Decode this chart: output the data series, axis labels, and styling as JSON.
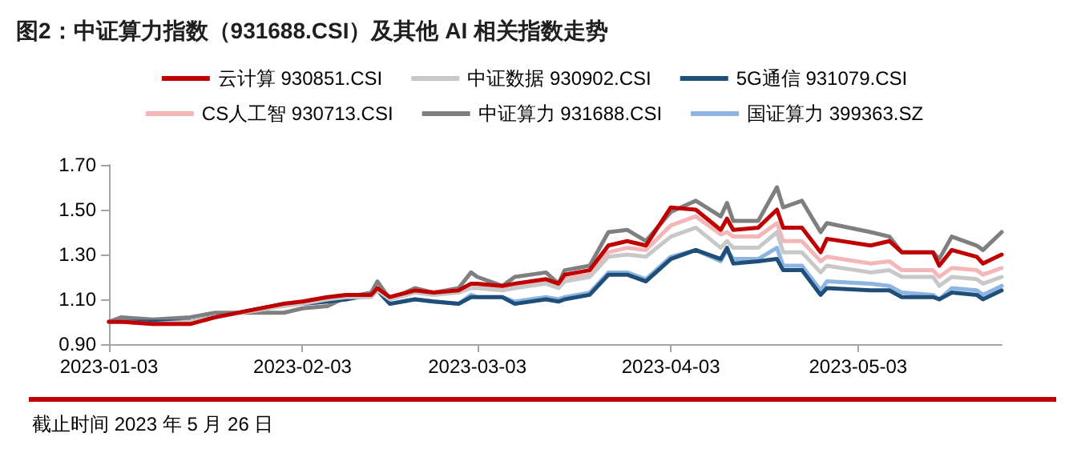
{
  "chart_data": {
    "type": "line",
    "title": "图2：中证算力指数（931688.CSI）及其他 AI 相关指数走势",
    "annotations": [
      "截止时间 2023 年 5 月 26 日"
    ],
    "x": [
      "2023-01-03",
      "2023-01-05",
      "2023-01-10",
      "2023-01-16",
      "2023-01-20",
      "2023-01-31",
      "2023-02-03",
      "2023-02-07",
      "2023-02-10",
      "2023-02-14",
      "2023-02-15",
      "2023-02-17",
      "2023-02-21",
      "2023-02-24",
      "2023-02-28",
      "2023-03-02",
      "2023-03-03",
      "2023-03-07",
      "2023-03-09",
      "2023-03-14",
      "2023-03-16",
      "2023-03-17",
      "2023-03-21",
      "2023-03-24",
      "2023-03-27",
      "2023-03-30",
      "2023-04-03",
      "2023-04-07",
      "2023-04-11",
      "2023-04-12",
      "2023-04-13",
      "2023-04-17",
      "2023-04-20",
      "2023-04-21",
      "2023-04-24",
      "2023-04-27",
      "2023-04-28",
      "2023-05-05",
      "2023-05-08",
      "2023-05-10",
      "2023-05-15",
      "2023-05-16",
      "2023-05-18",
      "2023-05-22",
      "2023-05-23",
      "2023-05-26"
    ],
    "series": [
      {
        "name": "云计算 930851.CSI",
        "color": "#c00000",
        "values": [
          1.0,
          1.0,
          0.99,
          0.99,
          1.02,
          1.08,
          1.09,
          1.11,
          1.12,
          1.12,
          1.15,
          1.11,
          1.14,
          1.13,
          1.14,
          1.17,
          1.17,
          1.16,
          1.17,
          1.19,
          1.17,
          1.21,
          1.23,
          1.34,
          1.36,
          1.34,
          1.51,
          1.5,
          1.41,
          1.46,
          1.41,
          1.42,
          1.5,
          1.42,
          1.42,
          1.31,
          1.37,
          1.34,
          1.36,
          1.31,
          1.31,
          1.25,
          1.32,
          1.29,
          1.26,
          1.3
        ]
      },
      {
        "name": "中证数据 930902.CSI",
        "color": "#c8c8c8",
        "values": [
          1.0,
          1.0,
          0.99,
          1.0,
          1.02,
          1.07,
          1.08,
          1.1,
          1.11,
          1.11,
          1.14,
          1.1,
          1.13,
          1.12,
          1.13,
          1.15,
          1.15,
          1.14,
          1.15,
          1.17,
          1.15,
          1.18,
          1.2,
          1.29,
          1.3,
          1.29,
          1.38,
          1.42,
          1.33,
          1.36,
          1.33,
          1.33,
          1.4,
          1.31,
          1.31,
          1.22,
          1.25,
          1.22,
          1.23,
          1.2,
          1.2,
          1.16,
          1.2,
          1.19,
          1.17,
          1.2
        ]
      },
      {
        "name": "5G通信 931079.CSI",
        "color": "#1f4e79",
        "values": [
          1.0,
          1.0,
          1.0,
          1.0,
          1.02,
          1.08,
          1.08,
          1.09,
          1.1,
          1.12,
          1.14,
          1.08,
          1.1,
          1.09,
          1.08,
          1.11,
          1.11,
          1.11,
          1.08,
          1.1,
          1.09,
          1.1,
          1.12,
          1.21,
          1.21,
          1.18,
          1.28,
          1.32,
          1.28,
          1.33,
          1.26,
          1.27,
          1.28,
          1.23,
          1.23,
          1.12,
          1.15,
          1.14,
          1.14,
          1.11,
          1.11,
          1.1,
          1.13,
          1.12,
          1.1,
          1.14
        ]
      },
      {
        "name": "CS人工智 930713.CSI",
        "color": "#f4b6b6",
        "values": [
          1.0,
          1.0,
          0.99,
          0.99,
          1.02,
          1.08,
          1.09,
          1.11,
          1.12,
          1.12,
          1.15,
          1.11,
          1.14,
          1.13,
          1.14,
          1.16,
          1.16,
          1.15,
          1.16,
          1.18,
          1.16,
          1.19,
          1.21,
          1.31,
          1.33,
          1.32,
          1.43,
          1.47,
          1.39,
          1.4,
          1.38,
          1.38,
          1.44,
          1.36,
          1.36,
          1.27,
          1.29,
          1.26,
          1.27,
          1.23,
          1.23,
          1.2,
          1.24,
          1.23,
          1.21,
          1.24
        ]
      },
      {
        "name": "中证算力 931688.CSI",
        "color": "#7f7f7f",
        "values": [
          1.0,
          1.02,
          1.01,
          1.02,
          1.04,
          1.04,
          1.06,
          1.07,
          1.11,
          1.13,
          1.18,
          1.1,
          1.15,
          1.13,
          1.15,
          1.22,
          1.2,
          1.16,
          1.2,
          1.22,
          1.17,
          1.23,
          1.25,
          1.4,
          1.41,
          1.36,
          1.49,
          1.54,
          1.47,
          1.53,
          1.45,
          1.45,
          1.6,
          1.51,
          1.54,
          1.4,
          1.44,
          1.4,
          1.38,
          1.31,
          1.31,
          1.28,
          1.38,
          1.34,
          1.32,
          1.4
        ]
      },
      {
        "name": "国证算力 399363.SZ",
        "color": "#8db4e2",
        "values": [
          1.0,
          1.0,
          1.0,
          1.0,
          1.02,
          1.08,
          1.08,
          1.09,
          1.1,
          1.12,
          1.14,
          1.08,
          1.1,
          1.09,
          1.08,
          1.12,
          1.11,
          1.11,
          1.09,
          1.11,
          1.1,
          1.11,
          1.13,
          1.22,
          1.22,
          1.19,
          1.29,
          1.32,
          1.27,
          1.32,
          1.28,
          1.28,
          1.33,
          1.25,
          1.25,
          1.14,
          1.18,
          1.17,
          1.16,
          1.13,
          1.12,
          1.1,
          1.15,
          1.14,
          1.12,
          1.16
        ]
      }
    ],
    "xlim": [
      "2023-01-03",
      "2023-05-26"
    ],
    "xticks": [
      "2023-01-03",
      "2023-02-03",
      "2023-03-03",
      "2023-04-03",
      "2023-05-03"
    ],
    "ylim": [
      0.9,
      1.7
    ],
    "yticks": [
      {
        "value": 0.9,
        "label": "0.90"
      },
      {
        "value": 1.1,
        "label": "1.10"
      },
      {
        "value": 1.3,
        "label": "1.30"
      },
      {
        "value": 1.5,
        "label": "1.50"
      },
      {
        "value": 1.7,
        "label": "1.70"
      }
    ],
    "grid": false,
    "legend": "top",
    "marker": "none",
    "line_style": "solid"
  }
}
